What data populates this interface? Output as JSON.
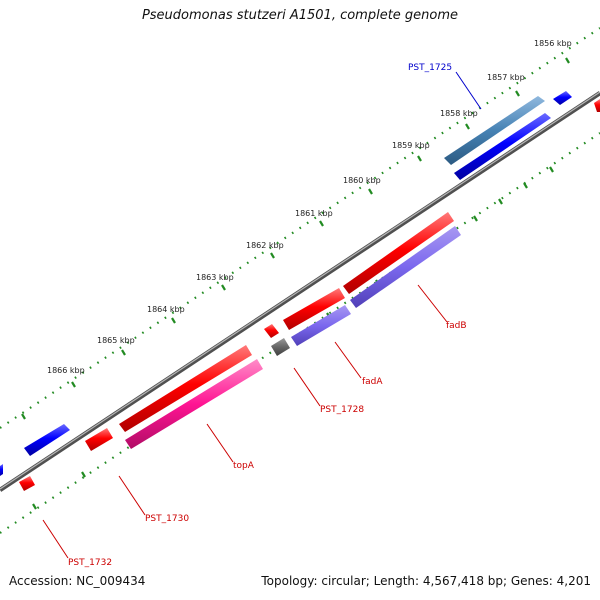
{
  "title": "Pseudomonas stutzeri A1501, complete genome",
  "footer": {
    "accession": "Accession: NC_009434",
    "summary": "Topology: circular; Length: 4,567,418 bp; Genes: 4,201"
  },
  "colors": {
    "backbone": "#7f7f7f",
    "tick": "#228b22",
    "forward_gene": "#ff0000",
    "reverse_gene": "#0000ff",
    "label_forward": "#cc0000",
    "label_reverse": "#0000cc"
  },
  "kbp_ticks": [
    "1856 kbp",
    "1857 kbp",
    "1858 kbp",
    "1859 kbp",
    "1860 kbp",
    "1861 kbp",
    "1862 kbp",
    "1863 kbp",
    "1864 kbp",
    "1865 kbp",
    "1866 kbp"
  ],
  "gene_labels": [
    {
      "text": "PST_1725",
      "color": "#0000cc"
    },
    {
      "text": "fadB",
      "color": "#cc0000"
    },
    {
      "text": "fadA",
      "color": "#cc0000"
    },
    {
      "text": "PST_1728",
      "color": "#cc0000"
    },
    {
      "text": "topA",
      "color": "#cc0000"
    },
    {
      "text": "PST_1730",
      "color": "#cc0000"
    },
    {
      "text": "PST_1732",
      "color": "#cc0000"
    }
  ]
}
